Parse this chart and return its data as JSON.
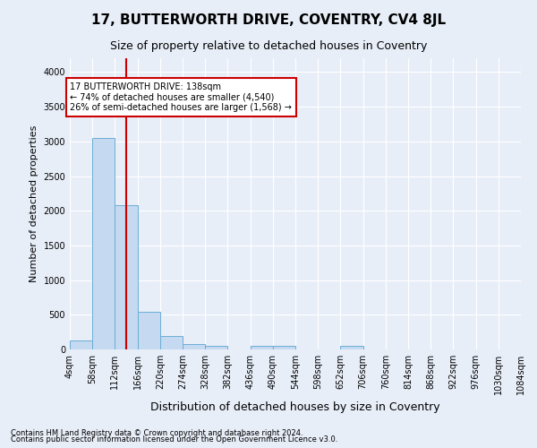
{
  "title": "17, BUTTERWORTH DRIVE, COVENTRY, CV4 8JL",
  "subtitle": "Size of property relative to detached houses in Coventry",
  "xlabel": "Distribution of detached houses by size in Coventry",
  "ylabel": "Number of detached properties",
  "bin_edges": [
    4,
    58,
    112,
    166,
    220,
    274,
    328,
    382,
    436,
    490,
    544,
    598,
    652,
    706,
    760,
    814,
    868,
    922,
    976,
    1030,
    1084
  ],
  "bin_heights": [
    130,
    3050,
    2080,
    540,
    200,
    80,
    55,
    0,
    50,
    50,
    0,
    0,
    50,
    0,
    0,
    0,
    0,
    0,
    0,
    0
  ],
  "bar_color": "#c5d9f0",
  "bar_edge_color": "#6baed6",
  "property_size": 138,
  "vline_color": "#cc0000",
  "annotation_text": "17 BUTTERWORTH DRIVE: 138sqm\n← 74% of detached houses are smaller (4,540)\n26% of semi-detached houses are larger (1,568) →",
  "annotation_box_color": "#ffffff",
  "annotation_box_edge_color": "#cc0000",
  "ylim": [
    0,
    4200
  ],
  "yticks": [
    0,
    500,
    1000,
    1500,
    2000,
    2500,
    3000,
    3500,
    4000
  ],
  "footer1": "Contains HM Land Registry data © Crown copyright and database right 2024.",
  "footer2": "Contains public sector information licensed under the Open Government Licence v3.0.",
  "background_color": "#e8eef8",
  "grid_color": "#ffffff",
  "title_fontsize": 11,
  "subtitle_fontsize": 9,
  "axis_label_fontsize": 8,
  "tick_label_fontsize": 7,
  "footer_fontsize": 6
}
